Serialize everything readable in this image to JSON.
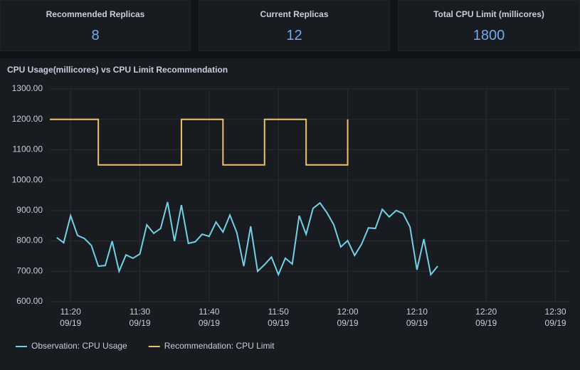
{
  "stats": [
    {
      "title": "Recommended Replicas",
      "value": 8
    },
    {
      "title": "Current Replicas",
      "value": 12
    },
    {
      "title": "Total CPU Limit (millicores)",
      "value": 1800
    }
  ],
  "chart_data": {
    "type": "line",
    "title": "CPU Usage(millicores) vs CPU Limit Recommendation",
    "xlim": [
      "11:17",
      "12:32"
    ],
    "xticks": [
      {
        "value": "11:20",
        "label": "11:20\n09/19"
      },
      {
        "value": "11:30",
        "label": "11:30\n09/19"
      },
      {
        "value": "11:40",
        "label": "11:40\n09/19"
      },
      {
        "value": "11:50",
        "label": "11:50\n09/19"
      },
      {
        "value": "12:00",
        "label": "12:00\n09/19"
      },
      {
        "value": "12:10",
        "label": "12:10\n09/19"
      },
      {
        "value": "12:20",
        "label": "12:20\n09/19"
      },
      {
        "value": "12:30",
        "label": "12:30\n09/19"
      }
    ],
    "ylim": [
      600,
      1300
    ],
    "yticks": [
      {
        "value": 600,
        "label": "600.00"
      },
      {
        "value": 700,
        "label": "700.00"
      },
      {
        "value": 800,
        "label": "800.00"
      },
      {
        "value": 900,
        "label": "900.00"
      },
      {
        "value": 1000,
        "label": "1000.00"
      },
      {
        "value": 1100,
        "label": "1100.00"
      },
      {
        "value": 1200,
        "label": "1200.00"
      },
      {
        "value": 1300,
        "label": "1300.00"
      }
    ],
    "grid": true,
    "legend": "bottom-left",
    "series": [
      {
        "name": "Observation: CPU Usage",
        "color": "#73d0e6",
        "step": false,
        "x": [
          "11:18",
          "11:19",
          "11:20",
          "11:21",
          "11:22",
          "11:23",
          "11:24",
          "11:25",
          "11:26",
          "11:27",
          "11:28",
          "11:29",
          "11:30",
          "11:31",
          "11:32",
          "11:33",
          "11:34",
          "11:35",
          "11:36",
          "11:37",
          "11:38",
          "11:39",
          "11:40",
          "11:41",
          "11:42",
          "11:43",
          "11:44",
          "11:45",
          "11:46",
          "11:47",
          "11:48",
          "11:49",
          "11:50",
          "11:51",
          "11:52",
          "11:53",
          "11:54",
          "11:55",
          "11:56",
          "11:57",
          "11:58",
          "11:59",
          "12:00",
          "12:01",
          "12:02",
          "12:03",
          "12:04",
          "12:05",
          "12:06",
          "12:07",
          "12:08",
          "12:09",
          "12:10",
          "12:11",
          "12:12",
          "12:13"
        ],
        "values": [
          811,
          794,
          883,
          818,
          808,
          785,
          717,
          719,
          799,
          700,
          754,
          743,
          757,
          853,
          825,
          841,
          928,
          799,
          918,
          792,
          797,
          822,
          815,
          862,
          829,
          885,
          827,
          717,
          848,
          700,
          722,
          747,
          689,
          743,
          724,
          883,
          822,
          907,
          925,
          893,
          853,
          780,
          801,
          752,
          789,
          843,
          841,
          904,
          879,
          900,
          890,
          846,
          705,
          806,
          689,
          717
        ]
      },
      {
        "name": "Recommendation: CPU Limit",
        "color": "#eac36e",
        "step": true,
        "x": [
          "11:17",
          "11:24",
          "11:36",
          "11:42",
          "11:48",
          "11:54",
          "12:00"
        ],
        "values": [
          1200,
          1050,
          1200,
          1050,
          1200,
          1050,
          1200
        ]
      }
    ]
  }
}
